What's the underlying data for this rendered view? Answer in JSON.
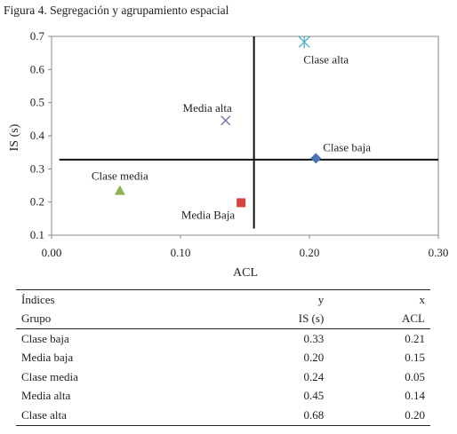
{
  "figure_title": "Figura 4. Segregación y agrupamiento espacial",
  "chart_data": {
    "type": "scatter",
    "title": "",
    "xlabel": "ACL",
    "ylabel": "IS (s)",
    "xlim": [
      0.0,
      0.3
    ],
    "ylim": [
      0.1,
      0.7
    ],
    "x_ticks": [
      0.0,
      0.1,
      0.2,
      0.3
    ],
    "x_tick_labels": [
      "0.00",
      "0.10",
      "0.20",
      "0.30"
    ],
    "y_ticks": [
      0.1,
      0.2,
      0.3,
      0.4,
      0.5,
      0.6,
      0.7
    ],
    "y_tick_labels": [
      "0.1",
      "0.2",
      "0.3",
      "0.4",
      "0.5",
      "0.6",
      "0.7"
    ],
    "grid": false,
    "reference_lines": [
      {
        "orientation": "vertical",
        "x": 0.157,
        "y_from": 0.12,
        "y_to": 0.7
      },
      {
        "orientation": "horizontal",
        "y": 0.328,
        "x_from": 0.006,
        "x_to": 0.3
      }
    ],
    "points": [
      {
        "label": "Clase alta",
        "x": 0.196,
        "y": 0.683,
        "marker": "asterisk",
        "color": "#4bacc6",
        "label_pos": "below-right"
      },
      {
        "label": "Media alta",
        "x": 0.135,
        "y": 0.446,
        "marker": "x",
        "color": "#7b5fa3",
        "label_pos": "above-left"
      },
      {
        "label": "Clase baja",
        "x": 0.205,
        "y": 0.332,
        "marker": "diamond",
        "color": "#4a74b5",
        "label_pos": "above-right"
      },
      {
        "label": "Clase media",
        "x": 0.053,
        "y": 0.235,
        "marker": "triangle",
        "color": "#8db354",
        "label_pos": "above"
      },
      {
        "label": "Media Baja",
        "x": 0.147,
        "y": 0.198,
        "marker": "square",
        "color": "#d9453d",
        "label_pos": "below-left"
      }
    ]
  },
  "table": {
    "header_rows": [
      [
        "Índices",
        "y",
        "x"
      ],
      [
        "Grupo",
        "IS (s)",
        "ACL"
      ]
    ],
    "rows": [
      [
        "Clase baja",
        "0.33",
        "0.21"
      ],
      [
        "Media baja",
        "0.20",
        "0.15"
      ],
      [
        "Clase media",
        "0.24",
        "0.05"
      ],
      [
        "Media alta",
        "0.45",
        "0.14"
      ],
      [
        "Clase alta",
        "0.68",
        "0.20"
      ]
    ]
  }
}
